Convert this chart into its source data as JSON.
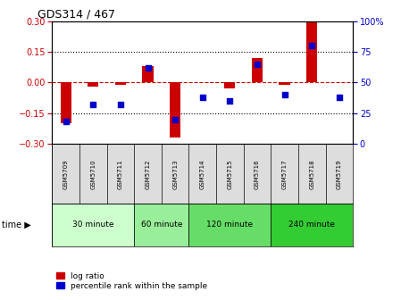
{
  "title": "GDS314 / 467",
  "samples": [
    "GSM5709",
    "GSM5710",
    "GSM5711",
    "GSM5712",
    "GSM5713",
    "GSM5714",
    "GSM5715",
    "GSM5716",
    "GSM5717",
    "GSM5718",
    "GSM5719"
  ],
  "log_ratio": [
    -0.2,
    -0.02,
    -0.01,
    0.08,
    -0.27,
    0.0,
    -0.03,
    0.12,
    -0.01,
    0.3,
    0.0
  ],
  "percentile": [
    18,
    32,
    32,
    62,
    20,
    38,
    35,
    65,
    40,
    80,
    38
  ],
  "bar_color": "#cc0000",
  "dot_color": "#0000cc",
  "ylim_left": [
    -0.3,
    0.3
  ],
  "ylim_right": [
    0,
    100
  ],
  "yticks_left": [
    -0.3,
    -0.15,
    0,
    0.15,
    0.3
  ],
  "yticks_right": [
    0,
    25,
    50,
    75,
    100
  ],
  "hlines_dotted": [
    -0.15,
    0.15
  ],
  "hline_zero": 0,
  "groups": [
    {
      "label": "30 minute",
      "start": 0,
      "end": 3,
      "color": "#ccffcc"
    },
    {
      "label": "60 minute",
      "start": 3,
      "end": 5,
      "color": "#99ee99"
    },
    {
      "label": "120 minute",
      "start": 5,
      "end": 8,
      "color": "#66dd66"
    },
    {
      "label": "240 minute",
      "start": 8,
      "end": 11,
      "color": "#33cc33"
    }
  ],
  "time_label": "time",
  "legend_bar_label": "log ratio",
  "legend_dot_label": "percentile rank within the sample",
  "zero_line_color": "#cc0000",
  "dotted_line_color": "#000000",
  "bg_color": "#ffffff",
  "bar_width": 0.4,
  "dot_size": 25
}
